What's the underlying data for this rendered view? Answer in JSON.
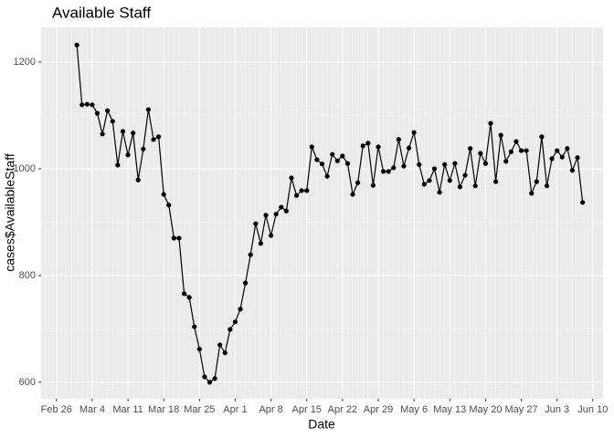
{
  "chart_data": {
    "type": "line",
    "title": "Available Staff",
    "x_label": "Date",
    "y_label": "cases$AvailableStaff",
    "x": [
      "Mar 1",
      "Mar 2",
      "Mar 3",
      "Mar 4",
      "Mar 5",
      "Mar 6",
      "Mar 7",
      "Mar 8",
      "Mar 9",
      "Mar 10",
      "Mar 11",
      "Mar 12",
      "Mar 13",
      "Mar 14",
      "Mar 15",
      "Mar 16",
      "Mar 17",
      "Mar 18",
      "Mar 19",
      "Mar 20",
      "Mar 21",
      "Mar 22",
      "Mar 23",
      "Mar 24",
      "Mar 25",
      "Mar 26",
      "Mar 27",
      "Mar 28",
      "Mar 29",
      "Mar 30",
      "Mar 31",
      "Apr 1",
      "Apr 2",
      "Apr 3",
      "Apr 4",
      "Apr 5",
      "Apr 6",
      "Apr 7",
      "Apr 8",
      "Apr 9",
      "Apr 10",
      "Apr 11",
      "Apr 12",
      "Apr 13",
      "Apr 14",
      "Apr 15",
      "Apr 16",
      "Apr 17",
      "Apr 18",
      "Apr 19",
      "Apr 20",
      "Apr 21",
      "Apr 22",
      "Apr 23",
      "Apr 24",
      "Apr 25",
      "Apr 26",
      "Apr 27",
      "Apr 28",
      "Apr 29",
      "Apr 30",
      "May 1",
      "May 2",
      "May 3",
      "May 4",
      "May 5",
      "May 6",
      "May 7",
      "May 8",
      "May 9",
      "May 10",
      "May 11",
      "May 12",
      "May 13",
      "May 14",
      "May 15",
      "May 16",
      "May 17",
      "May 18",
      "May 19",
      "May 20",
      "May 21",
      "May 22",
      "May 23",
      "May 24",
      "May 25",
      "May 26",
      "May 27",
      "May 28",
      "May 29",
      "May 30",
      "May 31",
      "Jun 1",
      "Jun 2",
      "Jun 3",
      "Jun 4",
      "Jun 5",
      "Jun 6",
      "Jun 7",
      "Jun 8"
    ],
    "values": [
      1232,
      1120,
      1121,
      1120,
      1104,
      1065,
      1109,
      1089,
      1007,
      1070,
      1026,
      1067,
      979,
      1037,
      1111,
      1055,
      1060,
      952,
      932,
      870,
      870,
      766,
      759,
      704,
      662,
      610,
      600,
      607,
      670,
      655,
      699,
      713,
      737,
      786,
      839,
      897,
      860,
      913,
      875,
      915,
      928,
      921,
      983,
      950,
      959,
      959,
      1041,
      1017,
      1009,
      986,
      1027,
      1015,
      1024,
      1010,
      952,
      974,
      1043,
      1048,
      969,
      1041,
      995,
      995,
      1002,
      1055,
      1005,
      1039,
      1068,
      1008,
      971,
      978,
      1000,
      956,
      1008,
      978,
      1010,
      966,
      988,
      1038,
      968,
      1029,
      1010,
      1085,
      976,
      1063,
      1014,
      1032,
      1051,
      1034,
      1034,
      954,
      976,
      1060,
      968,
      1019,
      1034,
      1022,
      1038,
      997,
      1021,
      937
    ],
    "color": "#000000",
    "xlim": [
      "Feb 23",
      "Jun 12"
    ],
    "xticks": [
      "Feb 26",
      "Mar 4",
      "Mar 11",
      "Mar 18",
      "Mar 25",
      "Apr 1",
      "Apr 8",
      "Apr 15",
      "Apr 22",
      "Apr 29",
      "May 6",
      "May 13",
      "May 20",
      "May 27",
      "Jun 3",
      "Jun 10"
    ],
    "ylim": [
      569,
      1265
    ],
    "yticks": [
      600,
      800,
      1000,
      1200
    ],
    "grid": true
  }
}
